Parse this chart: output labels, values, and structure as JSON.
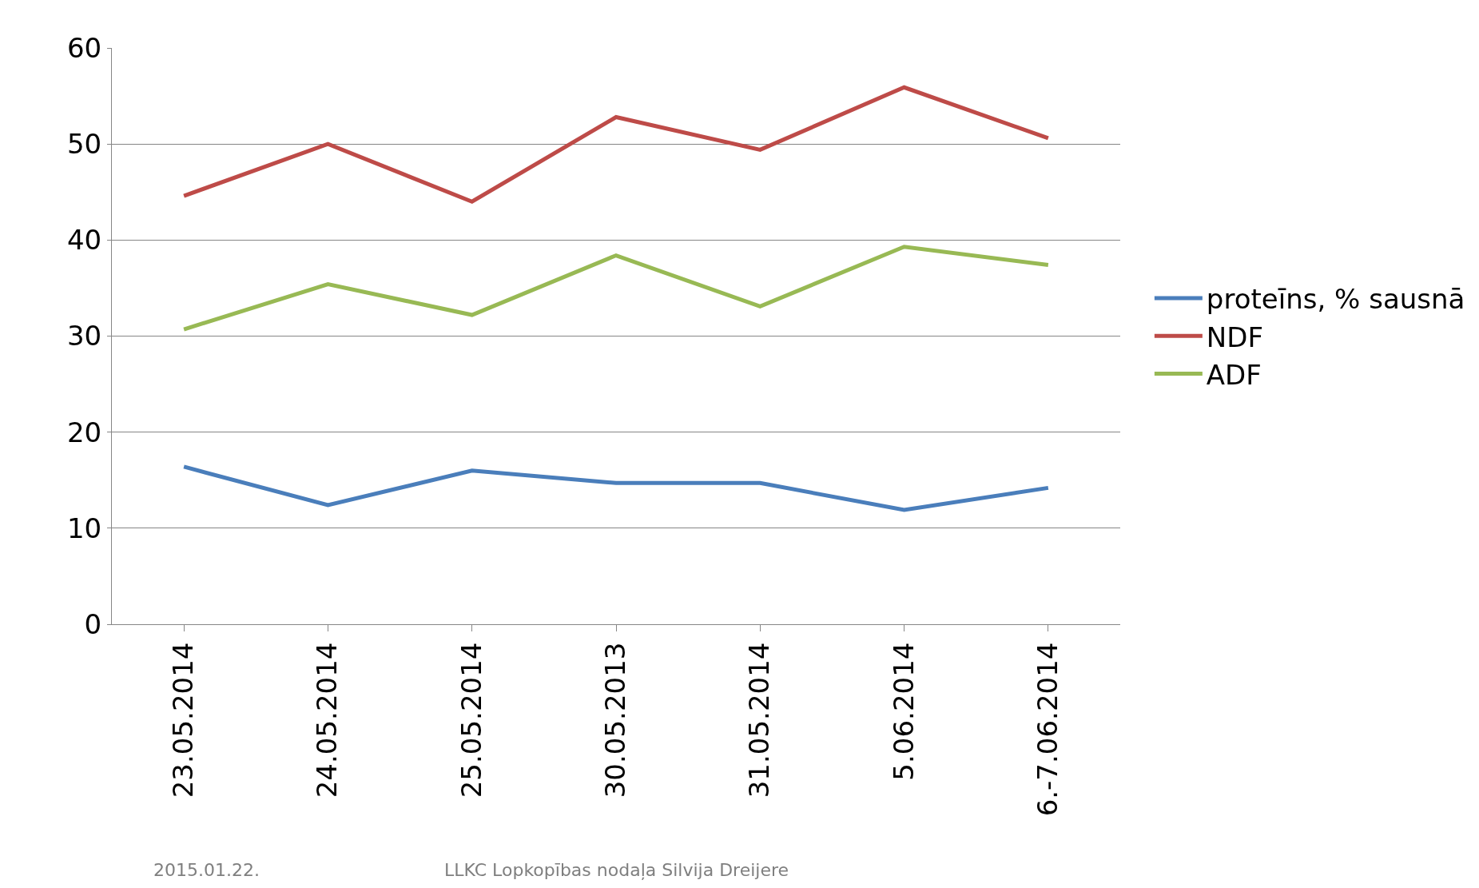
{
  "chart_data": {
    "type": "line",
    "categories": [
      "23.05.2014",
      "24.05.2014",
      "25.05.2014",
      "30.05.2013",
      "31.05.2014",
      "5.06.2014",
      "6.-7.06.2014"
    ],
    "series": [
      {
        "name": "proteīns, % sausnā",
        "color": "#4a7ebb",
        "values": [
          16.4,
          12.4,
          16.0,
          14.7,
          14.7,
          11.9,
          14.2
        ]
      },
      {
        "name": "NDF",
        "color": "#be4b48",
        "values": [
          44.6,
          50.0,
          44.0,
          52.8,
          49.4,
          55.9,
          50.6
        ]
      },
      {
        "name": "ADF",
        "color": "#98b954",
        "values": [
          30.7,
          35.4,
          32.2,
          38.4,
          33.1,
          39.3,
          37.4
        ]
      }
    ],
    "ylim": [
      0,
      60
    ],
    "yticks": [
      0,
      10,
      20,
      30,
      40,
      50,
      60
    ],
    "grid": "y",
    "legend": "right",
    "marker": "none",
    "line_style": "solid",
    "annotations": [
      "2015.01.22.",
      "LLKC Lopkopības nodaļa Silvija Dreijere"
    ]
  }
}
